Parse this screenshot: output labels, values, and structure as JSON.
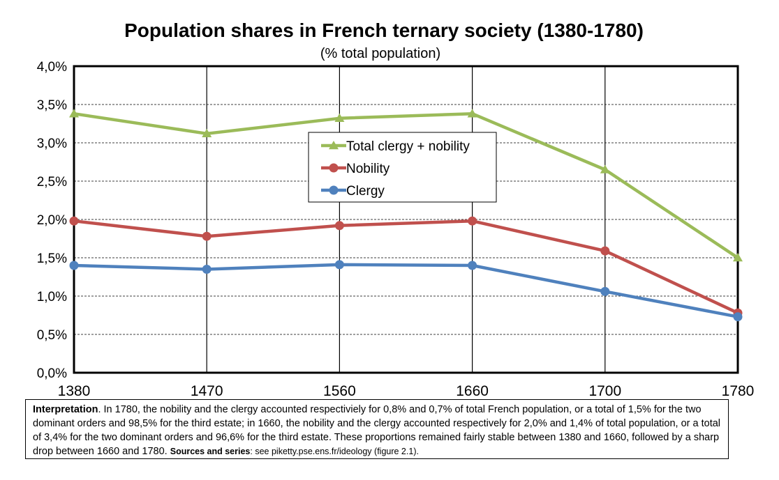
{
  "chart_data": {
    "type": "line",
    "title": "Population shares in French ternary society (1380-1780)",
    "subtitle": "(% total population)",
    "categories": [
      "1380",
      "1470",
      "1560",
      "1660",
      "1700",
      "1780"
    ],
    "ylim": [
      0,
      4.0
    ],
    "yticks": [
      "0,0%",
      "0,5%",
      "1,0%",
      "1,5%",
      "2,0%",
      "2,5%",
      "3,0%",
      "3,5%",
      "4,0%"
    ],
    "grid": true,
    "legend_placement": "center",
    "series": [
      {
        "name": "Total clergy + nobility",
        "color": "#9BBB59",
        "marker": "triangle",
        "values": [
          3.38,
          3.12,
          3.32,
          3.38,
          2.65,
          1.5
        ]
      },
      {
        "name": "Nobility",
        "color": "#C0504D",
        "marker": "circle",
        "values": [
          1.98,
          1.78,
          1.92,
          1.98,
          1.59,
          0.78
        ]
      },
      {
        "name": "Clergy",
        "color": "#4F81BD",
        "marker": "circle",
        "values": [
          1.4,
          1.35,
          1.41,
          1.4,
          1.06,
          0.73
        ]
      }
    ]
  },
  "note": {
    "label": "Interpretation",
    "text": ". In 1780, the nobility and the clergy accounted respectiviely for 0,8% and 0,7% of total French population, or a total of 1,5% for the two dominant orders and 98,5% for the third estate; in 1660, the nobility and the clergy accounted respectively for 2,0% and 1,4% of total population, or a total of 3,4% for the two dominant orders and 96,6% for the third estate. These proportions remained fairly stable between 1380 and 1660, followed by a sharp drop between 1660 and 1780. ",
    "sources_label": "Sources and series",
    "sources_text": ": see piketty.pse.ens.fr/ideology (figure 2.1)."
  }
}
